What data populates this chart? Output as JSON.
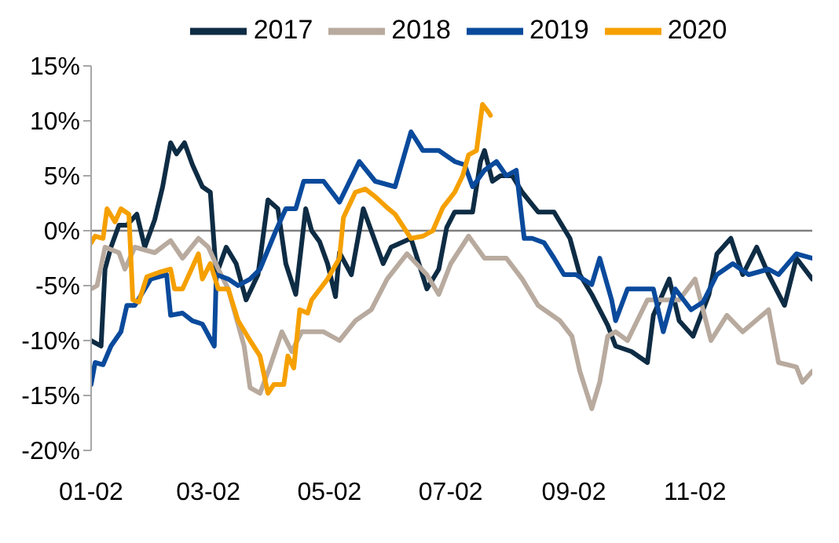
{
  "chart_data": {
    "type": "line",
    "legend": "top",
    "grid": false,
    "marker": "none",
    "line_style": "solid",
    "xlim": [
      "--01-02",
      "--12-31"
    ],
    "xticks": [
      {
        "value": "--01-02",
        "label": "01-02"
      },
      {
        "value": "--03-02",
        "label": "03-02"
      },
      {
        "value": "--05-02",
        "label": "05-02"
      },
      {
        "value": "--07-02",
        "label": "07-02"
      },
      {
        "value": "--09-02",
        "label": "09-02"
      },
      {
        "value": "--11-02",
        "label": "11-02"
      }
    ],
    "ylim": [
      -20,
      15
    ],
    "yticks": [
      {
        "value": -20,
        "label": "-20%"
      },
      {
        "value": -15,
        "label": "-15%"
      },
      {
        "value": -10,
        "label": "-10%"
      },
      {
        "value": -5,
        "label": "-5%"
      },
      {
        "value": 0,
        "label": "0%"
      },
      {
        "value": 5,
        "label": "5%"
      },
      {
        "value": 10,
        "label": "10%"
      },
      {
        "value": 15,
        "label": "15%"
      }
    ],
    "ref_lines": [
      {
        "axis": "y",
        "value": 0,
        "color": "#808080"
      }
    ],
    "series": [
      {
        "name": "2017",
        "color": "#0e2c44",
        "x": [
          "--01-02",
          "--01-04",
          "--01-07",
          "--01-09",
          "--01-12",
          "--01-16",
          "--01-20",
          "--01-25",
          "--01-29",
          "--02-03",
          "--02-07",
          "--02-11",
          "--02-14",
          "--02-18",
          "--02-22",
          "--02-27",
          "--03-03",
          "--03-06",
          "--03-11",
          "--03-16",
          "--03-21",
          "--03-27",
          "--04-01",
          "--04-06",
          "--04-10",
          "--04-15",
          "--04-20",
          "--04-23",
          "--04-27",
          "--05-01",
          "--05-05",
          "--05-07",
          "--05-13",
          "--05-19",
          "--05-23",
          "--05-29",
          "--06-02",
          "--06-12",
          "--06-20",
          "--06-26",
          "--06-30",
          "--07-04",
          "--07-13",
          "--07-17",
          "--07-19",
          "--07-23",
          "--07-27",
          "--08-02",
          "--08-07",
          "--08-15",
          "--08-23",
          "--08-31",
          "--09-05",
          "--09-11",
          "--09-19",
          "--09-23",
          "--10-01",
          "--10-09",
          "--10-12",
          "--10-20",
          "--10-25",
          "--11-01",
          "--11-09",
          "--11-13",
          "--11-20",
          "--11-26",
          "--12-03",
          "--12-09",
          "--12-17",
          "--12-23",
          "--12-31"
        ],
        "values": [
          -10,
          -10.2,
          -10.5,
          -3.5,
          -1.5,
          0.5,
          0.5,
          1.5,
          -1.5,
          1,
          4,
          8,
          7,
          8,
          6,
          4,
          3.5,
          -4,
          -1.5,
          -3,
          -6.3,
          -4,
          2.8,
          2,
          -3,
          -5.8,
          2,
          0,
          -1,
          -3,
          -6,
          -2,
          -4,
          2,
          0,
          -3,
          -1.5,
          -0.7,
          -5.3,
          -3.5,
          0.3,
          1.7,
          1.7,
          6.3,
          7.3,
          4.5,
          5,
          5,
          3.5,
          1.7,
          1.7,
          -0.7,
          -4,
          -5.8,
          -8.6,
          -10.5,
          -11,
          -12,
          -7.7,
          -4.4,
          -8.2,
          -9.6,
          -5.8,
          -2.1,
          -0.7,
          -4,
          -1.5,
          -4,
          -6.8,
          -2.5,
          -4.4
        ]
      },
      {
        "name": "2018",
        "color": "#b8aa9e",
        "x": [
          "--01-02",
          "--01-05",
          "--01-09",
          "--01-16",
          "--01-19",
          "--01-24",
          "--02-03",
          "--02-11",
          "--02-17",
          "--02-25",
          "--03-02",
          "--03-07",
          "--03-12",
          "--03-20",
          "--03-23",
          "--03-28",
          "--04-02",
          "--04-08",
          "--04-13",
          "--04-18",
          "--04-29",
          "--05-07",
          "--05-15",
          "--05-23",
          "--05-31",
          "--06-10",
          "--06-20",
          "--06-26",
          "--07-02",
          "--07-11",
          "--07-19",
          "--07-30",
          "--08-07",
          "--08-15",
          "--08-26",
          "--09-01",
          "--09-05",
          "--09-11",
          "--09-15",
          "--09-19",
          "--09-23",
          "--09-29",
          "--10-09",
          "--10-25",
          "--11-02",
          "--11-10",
          "--11-18",
          "--11-26",
          "--12-09",
          "--12-14",
          "--12-23",
          "--12-26",
          "--12-31"
        ],
        "values": [
          -5.3,
          -5,
          -1.5,
          -2,
          -3.5,
          -1.5,
          -2,
          -0.9,
          -2.5,
          -0.7,
          -1.5,
          -3.5,
          -5.3,
          -10.5,
          -14.3,
          -14.8,
          -12.4,
          -9.2,
          -11,
          -9.2,
          -9.2,
          -10,
          -8.2,
          -7.2,
          -4.4,
          -2.1,
          -4,
          -5.8,
          -3,
          -0.5,
          -2.5,
          -2.5,
          -4.4,
          -6.8,
          -8.2,
          -9.6,
          -12.8,
          -16.2,
          -13.8,
          -9.6,
          -9.2,
          -10,
          -6.3,
          -6.3,
          -4.4,
          -10,
          -7.7,
          -9.2,
          -7.2,
          -12,
          -12.4,
          -13.8,
          -12.8
        ]
      },
      {
        "name": "2019",
        "color": "#0a4a9c",
        "x": [
          "--01-02",
          "--01-04",
          "--01-08",
          "--01-12",
          "--01-17",
          "--01-20",
          "--01-24",
          "--02-01",
          "--02-09",
          "--02-11",
          "--02-17",
          "--02-22",
          "--02-27",
          "--03-05",
          "--03-06",
          "--03-12",
          "--03-17",
          "--03-23",
          "--03-28",
          "--04-05",
          "--04-10",
          "--04-15",
          "--04-19",
          "--04-29",
          "--05-07",
          "--05-17",
          "--05-25",
          "--06-04",
          "--06-12",
          "--06-18",
          "--06-26",
          "--07-04",
          "--07-09",
          "--07-13",
          "--07-19",
          "--07-25",
          "--07-30",
          "--08-04",
          "--08-08",
          "--08-12",
          "--08-18",
          "--08-23",
          "--08-28",
          "--09-03",
          "--09-11",
          "--09-15",
          "--09-21",
          "--09-23",
          "--09-29",
          "--10-12",
          "--10-17",
          "--10-23",
          "--10-31",
          "--11-06",
          "--11-13",
          "--11-21",
          "--11-29",
          "--12-09",
          "--12-14",
          "--12-23",
          "--12-31"
        ],
        "values": [
          -14,
          -12,
          -12.2,
          -10.5,
          -9.2,
          -6.8,
          -6.8,
          -4.4,
          -4,
          -7.7,
          -7.5,
          -8.2,
          -8.5,
          -10.5,
          -4,
          -4.4,
          -5,
          -4.4,
          -3.5,
          0,
          2,
          2,
          4.5,
          4.5,
          2.6,
          6.3,
          4.5,
          4,
          9,
          7.3,
          7.3,
          6.3,
          6,
          4,
          5.5,
          6.3,
          5,
          5.5,
          -0.7,
          -0.7,
          -1.1,
          -2.5,
          -4,
          -4,
          -4.9,
          -2.5,
          -6.3,
          -8.2,
          -5.3,
          -5.3,
          -9.2,
          -5.3,
          -7.2,
          -6.5,
          -4,
          -3,
          -4,
          -3.5,
          -4,
          -2.1,
          -2.5
        ]
      },
      {
        "name": "2020",
        "color": "#f5a000",
        "x": [
          "--01-02",
          "--01-04",
          "--01-08",
          "--01-10",
          "--01-14",
          "--01-17",
          "--01-21",
          "--01-23",
          "--01-26",
          "--01-30",
          "--02-05",
          "--02-11",
          "--02-13",
          "--02-17",
          "--02-25",
          "--02-27",
          "--03-03",
          "--03-07",
          "--03-12",
          "--03-17",
          "--03-23",
          "--03-28",
          "--04-01",
          "--04-04",
          "--04-09",
          "--04-11",
          "--04-14",
          "--04-17",
          "--04-21",
          "--04-23",
          "--05-01",
          "--05-07",
          "--05-09",
          "--05-15",
          "--05-20",
          "--05-25",
          "--05-31",
          "--06-04",
          "--06-12",
          "--06-18",
          "--06-23",
          "--06-28",
          "--07-04",
          "--07-08",
          "--07-11",
          "--07-15",
          "--07-18",
          "--07-21",
          "--07-22"
        ],
        "values": [
          -1.1,
          -0.5,
          -0.7,
          2,
          0.8,
          2,
          1.5,
          -6.3,
          -6.5,
          -4.2,
          -3.8,
          -3.5,
          -5.3,
          -5.3,
          -2.1,
          -4.4,
          -3,
          -5.3,
          -5.3,
          -8.2,
          -10,
          -11.4,
          -14.8,
          -14,
          -14,
          -11.4,
          -12.5,
          -7.2,
          -7.5,
          -6.3,
          -4.4,
          -2.5,
          1.2,
          3.5,
          3.8,
          3.1,
          2.1,
          1.5,
          -0.7,
          -0.5,
          0,
          2.1,
          3.5,
          5,
          6.9,
          7.3,
          11.5,
          10.8,
          10.5
        ]
      }
    ]
  }
}
